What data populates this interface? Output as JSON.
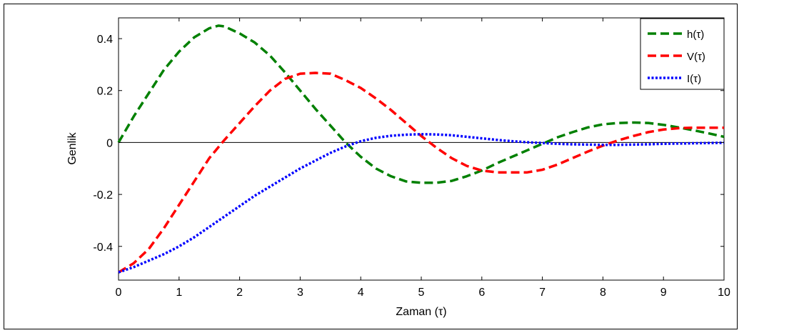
{
  "chart_data": {
    "type": "line",
    "xlabel": "Zaman (τ)",
    "ylabel": "Genlik",
    "xlim": [
      0,
      10
    ],
    "ylim": [
      -0.53,
      0.48
    ],
    "xticks": [
      0,
      1,
      2,
      3,
      4,
      5,
      6,
      7,
      8,
      9,
      10
    ],
    "xtick_labels": [
      "0",
      "1",
      "2",
      "3",
      "4",
      "5",
      "6",
      "7",
      "8",
      "9",
      "10"
    ],
    "yticks": [
      -0.4,
      -0.2,
      0,
      0.2,
      0.4
    ],
    "ytick_labels": [
      "-0.4",
      "-0.2",
      "0",
      "0.2",
      "0.4"
    ],
    "grid": false,
    "zero_line": true,
    "legend_position": "top-right",
    "series": [
      {
        "name": "h(τ)",
        "color": "#008000",
        "style": "dashed",
        "x": [
          0,
          0.25,
          0.5,
          0.75,
          1.0,
          1.25,
          1.5,
          1.65,
          1.75,
          2.0,
          2.25,
          2.5,
          2.75,
          3.0,
          3.25,
          3.5,
          3.75,
          4.0,
          4.25,
          4.5,
          4.75,
          5.0,
          5.25,
          5.5,
          5.75,
          6.0,
          6.25,
          6.5,
          6.75,
          7.0,
          7.25,
          7.5,
          7.75,
          8.0,
          8.25,
          8.5,
          8.75,
          9.0,
          9.25,
          9.5,
          9.75,
          10.0
        ],
        "y": [
          0.0,
          0.1,
          0.19,
          0.28,
          0.35,
          0.405,
          0.44,
          0.45,
          0.447,
          0.42,
          0.385,
          0.335,
          0.27,
          0.2,
          0.13,
          0.065,
          0.0,
          -0.055,
          -0.1,
          -0.13,
          -0.15,
          -0.155,
          -0.155,
          -0.148,
          -0.13,
          -0.108,
          -0.08,
          -0.055,
          -0.03,
          -0.005,
          0.02,
          0.04,
          0.058,
          0.07,
          0.075,
          0.077,
          0.075,
          0.068,
          0.058,
          0.047,
          0.035,
          0.022
        ]
      },
      {
        "name": "V(τ)",
        "color": "#ff0000",
        "style": "dashed",
        "x": [
          0,
          0.25,
          0.5,
          0.75,
          1.0,
          1.25,
          1.5,
          1.75,
          2.0,
          2.25,
          2.5,
          2.75,
          3.0,
          3.25,
          3.5,
          3.75,
          4.0,
          4.25,
          4.5,
          4.75,
          5.0,
          5.25,
          5.5,
          5.75,
          6.0,
          6.25,
          6.5,
          6.75,
          7.0,
          7.25,
          7.5,
          7.75,
          8.0,
          8.25,
          8.5,
          8.75,
          9.0,
          9.25,
          9.5,
          9.75,
          10.0
        ],
        "y": [
          -0.5,
          -0.465,
          -0.41,
          -0.33,
          -0.24,
          -0.15,
          -0.06,
          0.01,
          0.075,
          0.14,
          0.2,
          0.245,
          0.265,
          0.268,
          0.265,
          0.24,
          0.21,
          0.17,
          0.125,
          0.075,
          0.025,
          -0.02,
          -0.06,
          -0.09,
          -0.108,
          -0.115,
          -0.115,
          -0.115,
          -0.105,
          -0.085,
          -0.06,
          -0.035,
          -0.012,
          0.008,
          0.025,
          0.04,
          0.05,
          0.055,
          0.057,
          0.057,
          0.057
        ]
      },
      {
        "name": "I(τ)",
        "color": "#0000ff",
        "style": "dotted",
        "x": [
          0,
          0.25,
          0.5,
          0.75,
          1.0,
          1.25,
          1.5,
          1.75,
          2.0,
          2.25,
          2.5,
          2.75,
          3.0,
          3.25,
          3.5,
          3.75,
          4.0,
          4.25,
          4.5,
          4.75,
          5.0,
          5.25,
          5.5,
          5.75,
          6.0,
          6.25,
          6.5,
          6.75,
          7.0,
          7.25,
          7.5,
          7.75,
          8.0,
          8.25,
          8.5,
          8.75,
          9.0,
          9.25,
          9.5,
          9.75,
          10.0
        ],
        "y": [
          -0.5,
          -0.48,
          -0.455,
          -0.43,
          -0.4,
          -0.365,
          -0.325,
          -0.285,
          -0.245,
          -0.205,
          -0.17,
          -0.135,
          -0.1,
          -0.07,
          -0.04,
          -0.015,
          0.005,
          0.018,
          0.026,
          0.03,
          0.032,
          0.031,
          0.028,
          0.022,
          0.016,
          0.01,
          0.005,
          0.001,
          -0.002,
          -0.005,
          -0.007,
          -0.008,
          -0.009,
          -0.009,
          -0.008,
          -0.007,
          -0.005,
          -0.004,
          -0.003,
          -0.002,
          -0.001
        ]
      }
    ]
  }
}
